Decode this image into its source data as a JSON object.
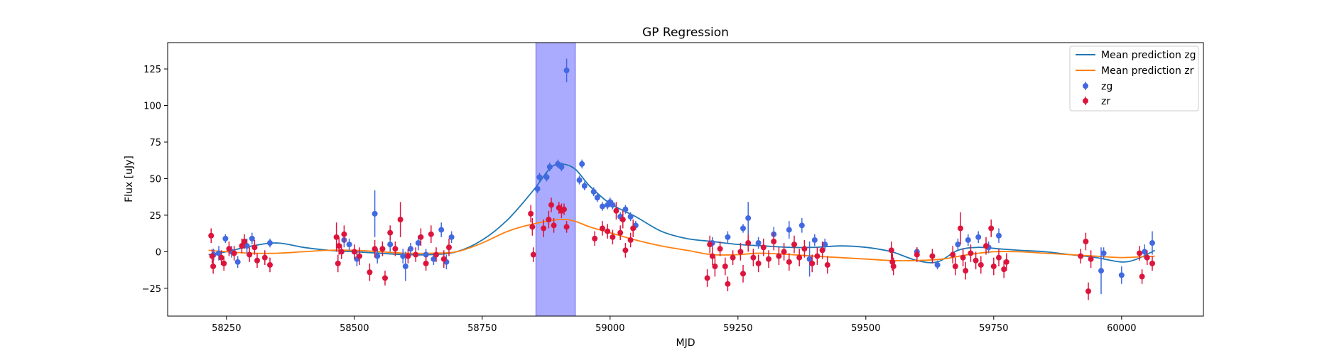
{
  "chart_data": {
    "type": "scatter",
    "title": "GP Regression",
    "xlabel": "MJD",
    "ylabel": "Flux [uJy]",
    "xlim": [
      58135,
      60160
    ],
    "ylim": [
      -44,
      143
    ],
    "xticks": [
      58250,
      58500,
      58750,
      59000,
      59250,
      59500,
      59750,
      60000
    ],
    "yticks": [
      -25,
      0,
      25,
      50,
      75,
      100,
      125
    ],
    "grid": false,
    "legend_position": "top-right",
    "highlight_region": {
      "x_start": 58855,
      "x_end": 58932,
      "color": "#aaaaff"
    },
    "series": [
      {
        "name": "Mean prediction zg",
        "kind": "line",
        "color": "#1f77b4",
        "x": [
          58215,
          58250,
          58300,
          58350,
          58400,
          58450,
          58500,
          58550,
          58600,
          58650,
          58700,
          58750,
          58800,
          58850,
          58880,
          58900,
          58930,
          58960,
          59000,
          59050,
          59100,
          59150,
          59200,
          59250,
          59300,
          59350,
          59400,
          59450,
          59500,
          59550,
          59600,
          59640,
          59680,
          59720,
          59760,
          59800,
          59850,
          59900,
          59950,
          60000,
          60030,
          60065
        ],
        "y": [
          -2,
          0,
          4,
          6,
          3,
          1,
          0,
          -1,
          -2,
          -2,
          0,
          8,
          22,
          42,
          56,
          60,
          57,
          45,
          33,
          24,
          14,
          9,
          7,
          5,
          4,
          3,
          3,
          4,
          3,
          0,
          -6,
          -7,
          1,
          3,
          2,
          1,
          0,
          -2,
          -4,
          -7,
          -5,
          1
        ]
      },
      {
        "name": "Mean prediction zr",
        "kind": "line",
        "color": "#ff7f0e",
        "x": [
          58215,
          58250,
          58300,
          58350,
          58400,
          58450,
          58500,
          58550,
          58600,
          58650,
          58700,
          58750,
          58800,
          58850,
          58900,
          58930,
          58960,
          59000,
          59050,
          59100,
          59150,
          59200,
          59250,
          59300,
          59400,
          59500,
          59550,
          59600,
          59650,
          59700,
          59750,
          59800,
          59850,
          59900,
          59950,
          60000,
          60065
        ],
        "y": [
          1,
          0,
          -1,
          -1,
          0,
          1,
          1,
          0,
          -1,
          -1,
          0,
          6,
          14,
          19,
          22,
          21,
          17,
          13,
          8,
          4,
          1,
          -2,
          -2,
          -1,
          -3,
          -5,
          -6,
          -6,
          -5,
          -2,
          0,
          0,
          -1,
          -2,
          -3,
          -4,
          -3
        ]
      },
      {
        "name": "zg",
        "kind": "errorbar",
        "color": "#4169e1",
        "points": [
          {
            "x": 58225,
            "y": -2,
            "err": 4
          },
          {
            "x": 58235,
            "y": -1,
            "err": 5
          },
          {
            "x": 58248,
            "y": 9,
            "err": 3
          },
          {
            "x": 58260,
            "y": 0,
            "err": 4
          },
          {
            "x": 58272,
            "y": -7,
            "err": 4
          },
          {
            "x": 58290,
            "y": 4,
            "err": 5
          },
          {
            "x": 58300,
            "y": 9,
            "err": 4
          },
          {
            "x": 58335,
            "y": 6,
            "err": 3
          },
          {
            "x": 58480,
            "y": 8,
            "err": 5
          },
          {
            "x": 58490,
            "y": 5,
            "err": 4
          },
          {
            "x": 58505,
            "y": -5,
            "err": 5
          },
          {
            "x": 58540,
            "y": 26,
            "err": 16
          },
          {
            "x": 58545,
            "y": -3,
            "err": 5
          },
          {
            "x": 58570,
            "y": 5,
            "err": 5
          },
          {
            "x": 58595,
            "y": -3,
            "err": 5
          },
          {
            "x": 58600,
            "y": -10,
            "err": 10
          },
          {
            "x": 58610,
            "y": 2,
            "err": 4
          },
          {
            "x": 58625,
            "y": 6,
            "err": 5
          },
          {
            "x": 58640,
            "y": -2,
            "err": 4
          },
          {
            "x": 58655,
            "y": -5,
            "err": 4
          },
          {
            "x": 58670,
            "y": 15,
            "err": 5
          },
          {
            "x": 58680,
            "y": -7,
            "err": 5
          },
          {
            "x": 58690,
            "y": 10,
            "err": 4
          },
          {
            "x": 58858,
            "y": 43,
            "err": 3
          },
          {
            "x": 58862,
            "y": 51,
            "err": 3
          },
          {
            "x": 58876,
            "y": 51,
            "err": 3
          },
          {
            "x": 58882,
            "y": 58,
            "err": 3
          },
          {
            "x": 58898,
            "y": 60,
            "err": 3
          },
          {
            "x": 58905,
            "y": 58,
            "err": 3
          },
          {
            "x": 58915,
            "y": 124,
            "err": 8
          },
          {
            "x": 58940,
            "y": 49,
            "err": 3
          },
          {
            "x": 58945,
            "y": 60,
            "err": 3
          },
          {
            "x": 58950,
            "y": 45,
            "err": 3
          },
          {
            "x": 58968,
            "y": 41,
            "err": 3
          },
          {
            "x": 58975,
            "y": 37,
            "err": 3
          },
          {
            "x": 58985,
            "y": 31,
            "err": 3
          },
          {
            "x": 58995,
            "y": 32,
            "err": 3
          },
          {
            "x": 59000,
            "y": 34,
            "err": 3
          },
          {
            "x": 59005,
            "y": 32,
            "err": 3
          },
          {
            "x": 59020,
            "y": 24,
            "err": 3
          },
          {
            "x": 59030,
            "y": 29,
            "err": 3
          },
          {
            "x": 59040,
            "y": 24,
            "err": 3
          },
          {
            "x": 59050,
            "y": 18,
            "err": 3
          },
          {
            "x": 59200,
            "y": 6,
            "err": 4
          },
          {
            "x": 59230,
            "y": 10,
            "err": 4
          },
          {
            "x": 59260,
            "y": 16,
            "err": 3
          },
          {
            "x": 59270,
            "y": 23,
            "err": 11
          },
          {
            "x": 59290,
            "y": 6,
            "err": 4
          },
          {
            "x": 59320,
            "y": 12,
            "err": 5
          },
          {
            "x": 59350,
            "y": 15,
            "err": 6
          },
          {
            "x": 59375,
            "y": 18,
            "err": 5
          },
          {
            "x": 59390,
            "y": -5,
            "err": 12
          },
          {
            "x": 59400,
            "y": 8,
            "err": 4
          },
          {
            "x": 59420,
            "y": 5,
            "err": 4
          },
          {
            "x": 59600,
            "y": 0,
            "err": 3
          },
          {
            "x": 59640,
            "y": -9,
            "err": 3
          },
          {
            "x": 59680,
            "y": 5,
            "err": 4
          },
          {
            "x": 59700,
            "y": 8,
            "err": 4
          },
          {
            "x": 59720,
            "y": 10,
            "err": 4
          },
          {
            "x": 59740,
            "y": 3,
            "err": 4
          },
          {
            "x": 59760,
            "y": 11,
            "err": 5
          },
          {
            "x": 59960,
            "y": -13,
            "err": 16
          },
          {
            "x": 59965,
            "y": -1,
            "err": 4
          },
          {
            "x": 60000,
            "y": -16,
            "err": 6
          },
          {
            "x": 60045,
            "y": 0,
            "err": 5
          },
          {
            "x": 60060,
            "y": 6,
            "err": 8
          }
        ]
      },
      {
        "name": "zr",
        "kind": "errorbar",
        "color": "#dc143c",
        "points": [
          {
            "x": 58220,
            "y": 11,
            "err": 5
          },
          {
            "x": 58222,
            "y": -3,
            "err": 5
          },
          {
            "x": 58224,
            "y": -10,
            "err": 5
          },
          {
            "x": 58240,
            "y": -4,
            "err": 5
          },
          {
            "x": 58245,
            "y": -8,
            "err": 5
          },
          {
            "x": 58255,
            "y": 2,
            "err": 5
          },
          {
            "x": 58265,
            "y": -1,
            "err": 5
          },
          {
            "x": 58280,
            "y": 4,
            "err": 5
          },
          {
            "x": 58285,
            "y": 7,
            "err": 5
          },
          {
            "x": 58295,
            "y": -2,
            "err": 5
          },
          {
            "x": 58305,
            "y": 3,
            "err": 5
          },
          {
            "x": 58310,
            "y": -6,
            "err": 5
          },
          {
            "x": 58325,
            "y": -4,
            "err": 5
          },
          {
            "x": 58335,
            "y": -9,
            "err": 5
          },
          {
            "x": 58465,
            "y": 10,
            "err": 10
          },
          {
            "x": 58468,
            "y": -8,
            "err": 6
          },
          {
            "x": 58470,
            "y": 4,
            "err": 6
          },
          {
            "x": 58475,
            "y": 0,
            "err": 5
          },
          {
            "x": 58480,
            "y": 12,
            "err": 6
          },
          {
            "x": 58500,
            "y": 0,
            "err": 5
          },
          {
            "x": 58510,
            "y": -3,
            "err": 6
          },
          {
            "x": 58530,
            "y": -14,
            "err": 6
          },
          {
            "x": 58540,
            "y": 2,
            "err": 6
          },
          {
            "x": 58555,
            "y": 2,
            "err": 5
          },
          {
            "x": 58560,
            "y": -18,
            "err": 5
          },
          {
            "x": 58570,
            "y": 13,
            "err": 5
          },
          {
            "x": 58580,
            "y": 2,
            "err": 5
          },
          {
            "x": 58590,
            "y": 22,
            "err": 12
          },
          {
            "x": 58605,
            "y": -3,
            "err": 5
          },
          {
            "x": 58620,
            "y": -2,
            "err": 5
          },
          {
            "x": 58630,
            "y": 10,
            "err": 6
          },
          {
            "x": 58640,
            "y": -8,
            "err": 5
          },
          {
            "x": 58650,
            "y": 12,
            "err": 6
          },
          {
            "x": 58660,
            "y": -2,
            "err": 5
          },
          {
            "x": 58675,
            "y": -5,
            "err": 6
          },
          {
            "x": 58685,
            "y": 3,
            "err": 6
          },
          {
            "x": 58845,
            "y": 26,
            "err": 6
          },
          {
            "x": 58848,
            "y": 17,
            "err": 6
          },
          {
            "x": 58850,
            "y": -2,
            "err": 5
          },
          {
            "x": 58870,
            "y": 16,
            "err": 6
          },
          {
            "x": 58880,
            "y": 22,
            "err": 6
          },
          {
            "x": 58885,
            "y": 32,
            "err": 5
          },
          {
            "x": 58890,
            "y": 18,
            "err": 5
          },
          {
            "x": 58900,
            "y": 30,
            "err": 4
          },
          {
            "x": 58905,
            "y": 28,
            "err": 5
          },
          {
            "x": 58910,
            "y": 29,
            "err": 4
          },
          {
            "x": 58915,
            "y": 17,
            "err": 4
          },
          {
            "x": 58970,
            "y": 9,
            "err": 5
          },
          {
            "x": 58985,
            "y": 16,
            "err": 5
          },
          {
            "x": 58995,
            "y": 14,
            "err": 5
          },
          {
            "x": 59005,
            "y": 10,
            "err": 5
          },
          {
            "x": 59012,
            "y": 28,
            "err": 6
          },
          {
            "x": 59020,
            "y": 13,
            "err": 5
          },
          {
            "x": 59025,
            "y": 22,
            "err": 6
          },
          {
            "x": 59030,
            "y": 1,
            "err": 5
          },
          {
            "x": 59040,
            "y": 8,
            "err": 5
          },
          {
            "x": 59045,
            "y": 16,
            "err": 6
          },
          {
            "x": 59190,
            "y": -18,
            "err": 6
          },
          {
            "x": 59195,
            "y": 5,
            "err": 6
          },
          {
            "x": 59200,
            "y": -3,
            "err": 6
          },
          {
            "x": 59205,
            "y": -10,
            "err": 7
          },
          {
            "x": 59215,
            "y": 2,
            "err": 5
          },
          {
            "x": 59225,
            "y": -10,
            "err": 6
          },
          {
            "x": 59230,
            "y": -22,
            "err": 5
          },
          {
            "x": 59240,
            "y": -4,
            "err": 5
          },
          {
            "x": 59255,
            "y": 0,
            "err": 6
          },
          {
            "x": 59260,
            "y": -15,
            "err": 6
          },
          {
            "x": 59270,
            "y": 6,
            "err": 6
          },
          {
            "x": 59280,
            "y": -4,
            "err": 6
          },
          {
            "x": 59290,
            "y": -8,
            "err": 6
          },
          {
            "x": 59300,
            "y": 3,
            "err": 6
          },
          {
            "x": 59310,
            "y": -5,
            "err": 6
          },
          {
            "x": 59320,
            "y": 7,
            "err": 6
          },
          {
            "x": 59330,
            "y": -3,
            "err": 6
          },
          {
            "x": 59340,
            "y": 0,
            "err": 6
          },
          {
            "x": 59350,
            "y": -7,
            "err": 6
          },
          {
            "x": 59360,
            "y": 5,
            "err": 6
          },
          {
            "x": 59370,
            "y": -4,
            "err": 6
          },
          {
            "x": 59380,
            "y": 2,
            "err": 6
          },
          {
            "x": 59395,
            "y": -8,
            "err": 6
          },
          {
            "x": 59405,
            "y": -3,
            "err": 6
          },
          {
            "x": 59415,
            "y": 1,
            "err": 6
          },
          {
            "x": 59425,
            "y": -9,
            "err": 6
          },
          {
            "x": 59550,
            "y": 1,
            "err": 6
          },
          {
            "x": 59552,
            "y": -7,
            "err": 6
          },
          {
            "x": 59554,
            "y": -10,
            "err": 6
          },
          {
            "x": 59600,
            "y": -2,
            "err": 5
          },
          {
            "x": 59630,
            "y": -3,
            "err": 5
          },
          {
            "x": 59670,
            "y": -2,
            "err": 6
          },
          {
            "x": 59675,
            "y": -10,
            "err": 6
          },
          {
            "x": 59685,
            "y": 16,
            "err": 11
          },
          {
            "x": 59690,
            "y": -4,
            "err": 6
          },
          {
            "x": 59695,
            "y": -13,
            "err": 6
          },
          {
            "x": 59705,
            "y": -1,
            "err": 6
          },
          {
            "x": 59715,
            "y": -6,
            "err": 6
          },
          {
            "x": 59725,
            "y": -9,
            "err": 6
          },
          {
            "x": 59735,
            "y": 4,
            "err": 6
          },
          {
            "x": 59745,
            "y": 16,
            "err": 6
          },
          {
            "x": 59750,
            "y": -10,
            "err": 6
          },
          {
            "x": 59760,
            "y": -4,
            "err": 6
          },
          {
            "x": 59770,
            "y": -12,
            "err": 6
          },
          {
            "x": 59775,
            "y": -7,
            "err": 6
          },
          {
            "x": 59920,
            "y": -3,
            "err": 5
          },
          {
            "x": 59930,
            "y": 7,
            "err": 6
          },
          {
            "x": 59935,
            "y": -27,
            "err": 6
          },
          {
            "x": 59940,
            "y": -5,
            "err": 6
          },
          {
            "x": 60035,
            "y": -1,
            "err": 5
          },
          {
            "x": 60040,
            "y": -17,
            "err": 5
          },
          {
            "x": 60050,
            "y": -4,
            "err": 5
          },
          {
            "x": 60060,
            "y": -8,
            "err": 5
          }
        ]
      }
    ]
  }
}
